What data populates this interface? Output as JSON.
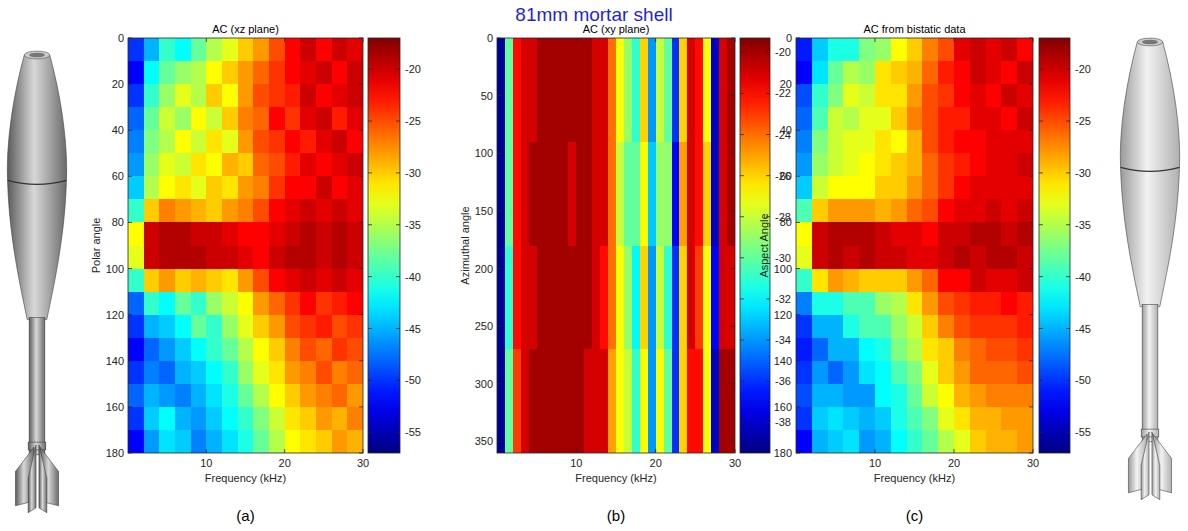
{
  "figure_title": "81mm mortar shell",
  "chart_data": [
    {
      "type": "heatmap",
      "panel_label": "(a)",
      "title": "AC (xz plane)",
      "x_label": "Frequency (kHz)",
      "y_label": "Polar angle",
      "xlim": [
        0,
        30
      ],
      "ylim": [
        0,
        180
      ],
      "xticks": [
        10,
        20,
        30
      ],
      "yticks": [
        0,
        20,
        40,
        60,
        80,
        100,
        120,
        140,
        160,
        180
      ],
      "x_bins": [
        0,
        2,
        4,
        6,
        8,
        10,
        12,
        14,
        16,
        18,
        20,
        22,
        24,
        26,
        28,
        30
      ],
      "y_bins": [
        0,
        10,
        20,
        30,
        40,
        50,
        60,
        70,
        80,
        90,
        100,
        110,
        120,
        130,
        140,
        150,
        160,
        170,
        180
      ],
      "cells": [
        [
          -50,
          -45,
          -40,
          -42,
          -38,
          -35,
          -33,
          -30,
          -28,
          -25,
          -22,
          -20,
          -22,
          -20,
          -21
        ],
        [
          -52,
          -42,
          -38,
          -36,
          -35,
          -32,
          -30,
          -28,
          -26,
          -24,
          -22,
          -21,
          -20,
          -22,
          -20
        ],
        [
          -50,
          -40,
          -36,
          -33,
          -35,
          -30,
          -32,
          -28,
          -25,
          -24,
          -23,
          -20,
          -22,
          -21,
          -20
        ],
        [
          -48,
          -38,
          -34,
          -36,
          -32,
          -34,
          -30,
          -27,
          -26,
          -22,
          -24,
          -21,
          -20,
          -23,
          -21
        ],
        [
          -47,
          -37,
          -35,
          -32,
          -34,
          -31,
          -33,
          -28,
          -25,
          -24,
          -22,
          -23,
          -21,
          -20,
          -22
        ],
        [
          -46,
          -36,
          -33,
          -34,
          -31,
          -32,
          -29,
          -30,
          -26,
          -25,
          -23,
          -21,
          -22,
          -21,
          -20
        ],
        [
          -44,
          -35,
          -32,
          -31,
          -33,
          -30,
          -31,
          -28,
          -27,
          -24,
          -22,
          -22,
          -20,
          -22,
          -21
        ],
        [
          -40,
          -30,
          -27,
          -28,
          -29,
          -30,
          -28,
          -27,
          -25,
          -22,
          -21,
          -20,
          -21,
          -20,
          -21
        ],
        [
          -32,
          -20,
          -19,
          -19,
          -20,
          -20,
          -21,
          -22,
          -22,
          -21,
          -20,
          -19,
          -20,
          -19,
          -20
        ],
        [
          -33,
          -20,
          -19,
          -19,
          -19,
          -20,
          -20,
          -21,
          -22,
          -20,
          -19,
          -19,
          -20,
          -19,
          -20
        ],
        [
          -40,
          -30,
          -28,
          -30,
          -29,
          -30,
          -31,
          -28,
          -25,
          -22,
          -21,
          -20,
          -21,
          -20,
          -21
        ],
        [
          -48,
          -40,
          -42,
          -38,
          -40,
          -36,
          -34,
          -32,
          -28,
          -26,
          -24,
          -22,
          -24,
          -23,
          -22
        ],
        [
          -50,
          -45,
          -44,
          -42,
          -38,
          -40,
          -36,
          -33,
          -30,
          -28,
          -25,
          -24,
          -23,
          -25,
          -24
        ],
        [
          -52,
          -48,
          -46,
          -44,
          -42,
          -40,
          -38,
          -35,
          -32,
          -30,
          -27,
          -25,
          -26,
          -24,
          -25
        ],
        [
          -50,
          -47,
          -48,
          -45,
          -44,
          -42,
          -40,
          -36,
          -33,
          -31,
          -28,
          -27,
          -25,
          -27,
          -26
        ],
        [
          -48,
          -45,
          -46,
          -47,
          -45,
          -43,
          -41,
          -38,
          -35,
          -32,
          -30,
          -28,
          -27,
          -26,
          -28
        ],
        [
          -50,
          -44,
          -42,
          -45,
          -46,
          -44,
          -42,
          -40,
          -37,
          -34,
          -31,
          -30,
          -28,
          -29,
          -27
        ],
        [
          -52,
          -46,
          -43,
          -44,
          -47,
          -45,
          -43,
          -41,
          -38,
          -35,
          -32,
          -31,
          -30,
          -28,
          -29
        ]
      ],
      "colorbar": {
        "range": [
          -57,
          -17
        ],
        "ticks": [
          -55,
          -50,
          -45,
          -40,
          -35,
          -30,
          -25,
          -20
        ]
      }
    },
    {
      "type": "heatmap",
      "panel_label": "(b)",
      "title": "AC (xy plane)",
      "x_label": "Frequency (kHz)",
      "y_label": "Azimuthal angle",
      "xlim": [
        0,
        30
      ],
      "ylim": [
        0,
        360
      ],
      "xticks": [
        10,
        20,
        30
      ],
      "yticks": [
        0,
        50,
        100,
        150,
        200,
        250,
        300,
        350
      ],
      "x_bins": [
        0,
        1,
        2,
        3,
        4,
        5,
        6,
        7,
        8,
        9,
        10,
        11,
        12,
        13,
        14,
        15,
        16,
        17,
        18,
        19,
        20,
        21,
        22,
        23,
        24,
        25,
        26,
        27,
        28,
        29,
        30
      ],
      "y_bins": [
        0,
        90,
        180,
        270,
        360
      ],
      "cells": [
        [
          -39,
          -30,
          -22,
          -21,
          -21,
          -20,
          -20,
          -20,
          -20,
          -20,
          -20,
          -20,
          -21,
          -21,
          -24,
          -27,
          -29,
          -31,
          -26,
          -34,
          -28,
          -30,
          -36,
          -26,
          -21,
          -22,
          -27,
          -38,
          -21,
          -20
        ],
        [
          -39,
          -30,
          -22,
          -21,
          -20,
          -20,
          -20,
          -20,
          -20,
          -21,
          -20,
          -20,
          -21,
          -21,
          -24,
          -28,
          -30,
          -30,
          -27,
          -33,
          -29,
          -29,
          -37,
          -25,
          -21,
          -22,
          -26,
          -38,
          -21,
          -20
        ],
        [
          -39,
          -31,
          -22,
          -21,
          -21,
          -20,
          -20,
          -20,
          -20,
          -20,
          -20,
          -20,
          -21,
          -22,
          -24,
          -27,
          -29,
          -32,
          -26,
          -34,
          -28,
          -31,
          -36,
          -26,
          -21,
          -23,
          -27,
          -37,
          -21,
          -21
        ],
        [
          -39,
          -30,
          -23,
          -21,
          -20,
          -20,
          -20,
          -20,
          -20,
          -20,
          -20,
          -21,
          -21,
          -21,
          -25,
          -27,
          -28,
          -31,
          -27,
          -34,
          -27,
          -30,
          -36,
          -26,
          -22,
          -22,
          -27,
          -38,
          -20,
          -20
        ]
      ],
      "colorbar": {
        "range": [
          -39.5,
          -19.3
        ],
        "ticks": [
          -38,
          -36,
          -34,
          -32,
          -30,
          -28,
          -26,
          -24,
          -22,
          -20
        ]
      }
    },
    {
      "type": "heatmap",
      "panel_label": "(c)",
      "title": "AC from bistatic data",
      "x_label": "Frequency (kHz)",
      "y_label": "Aspect Angle",
      "xlim": [
        0,
        30
      ],
      "ylim": [
        0,
        180
      ],
      "xticks": [
        10,
        20,
        30
      ],
      "yticks": [
        0,
        20,
        40,
        60,
        80,
        100,
        120,
        140,
        160,
        180
      ],
      "x_bins": [
        0,
        2,
        4,
        6,
        8,
        10,
        12,
        14,
        16,
        18,
        20,
        22,
        24,
        26,
        28,
        30
      ],
      "y_bins": [
        0,
        10,
        20,
        30,
        40,
        50,
        60,
        70,
        80,
        90,
        100,
        110,
        120,
        130,
        140,
        150,
        160,
        170,
        180
      ],
      "cells": [
        [
          -51,
          -44,
          -41,
          -41,
          -37,
          -36,
          -32,
          -30,
          -27,
          -25,
          -21,
          -20,
          -21,
          -20,
          -22
        ],
        [
          -52,
          -43,
          -38,
          -35,
          -36,
          -31,
          -30,
          -29,
          -26,
          -23,
          -22,
          -20,
          -21,
          -22,
          -20
        ],
        [
          -49,
          -40,
          -37,
          -33,
          -34,
          -31,
          -31,
          -28,
          -25,
          -24,
          -22,
          -21,
          -22,
          -20,
          -21
        ],
        [
          -48,
          -39,
          -34,
          -35,
          -33,
          -33,
          -30,
          -27,
          -25,
          -23,
          -23,
          -21,
          -21,
          -22,
          -20
        ],
        [
          -47,
          -37,
          -34,
          -33,
          -33,
          -31,
          -32,
          -29,
          -25,
          -23,
          -22,
          -22,
          -21,
          -21,
          -21
        ],
        [
          -46,
          -36,
          -34,
          -33,
          -32,
          -31,
          -30,
          -29,
          -26,
          -24,
          -23,
          -22,
          -21,
          -21,
          -20
        ],
        [
          -44,
          -34,
          -32,
          -32,
          -32,
          -30,
          -30,
          -28,
          -26,
          -24,
          -22,
          -21,
          -21,
          -21,
          -21
        ],
        [
          -39,
          -30,
          -28,
          -28,
          -28,
          -29,
          -28,
          -26,
          -25,
          -22,
          -21,
          -21,
          -20,
          -21,
          -20
        ],
        [
          -32,
          -20,
          -19,
          -19,
          -19,
          -20,
          -21,
          -21,
          -22,
          -20,
          -20,
          -19,
          -19,
          -20,
          -19
        ],
        [
          -33,
          -20,
          -19,
          -20,
          -19,
          -20,
          -20,
          -21,
          -21,
          -20,
          -19,
          -20,
          -19,
          -19,
          -20
        ],
        [
          -40,
          -31,
          -28,
          -29,
          -30,
          -30,
          -30,
          -28,
          -26,
          -22,
          -22,
          -20,
          -21,
          -21,
          -20
        ],
        [
          -47,
          -41,
          -41,
          -39,
          -39,
          -36,
          -35,
          -31,
          -28,
          -25,
          -24,
          -23,
          -23,
          -22,
          -23
        ],
        [
          -50,
          -45,
          -45,
          -41,
          -39,
          -39,
          -36,
          -34,
          -30,
          -27,
          -25,
          -24,
          -24,
          -24,
          -23
        ],
        [
          -51,
          -48,
          -45,
          -45,
          -42,
          -41,
          -37,
          -35,
          -31,
          -30,
          -27,
          -26,
          -25,
          -25,
          -24
        ],
        [
          -50,
          -46,
          -48,
          -46,
          -43,
          -42,
          -39,
          -37,
          -33,
          -30,
          -28,
          -26,
          -26,
          -26,
          -25
        ],
        [
          -49,
          -45,
          -45,
          -46,
          -46,
          -42,
          -41,
          -38,
          -34,
          -32,
          -29,
          -28,
          -27,
          -27,
          -27
        ],
        [
          -50,
          -44,
          -43,
          -44,
          -45,
          -44,
          -41,
          -39,
          -37,
          -33,
          -31,
          -29,
          -29,
          -28,
          -28
        ],
        [
          -52,
          -45,
          -44,
          -43,
          -46,
          -45,
          -42,
          -40,
          -38,
          -35,
          -33,
          -30,
          -29,
          -29,
          -28
        ]
      ],
      "colorbar": {
        "range": [
          -57,
          -17
        ],
        "ticks": [
          -55,
          -50,
          -45,
          -40,
          -35,
          -30,
          -25,
          -20
        ]
      }
    }
  ]
}
